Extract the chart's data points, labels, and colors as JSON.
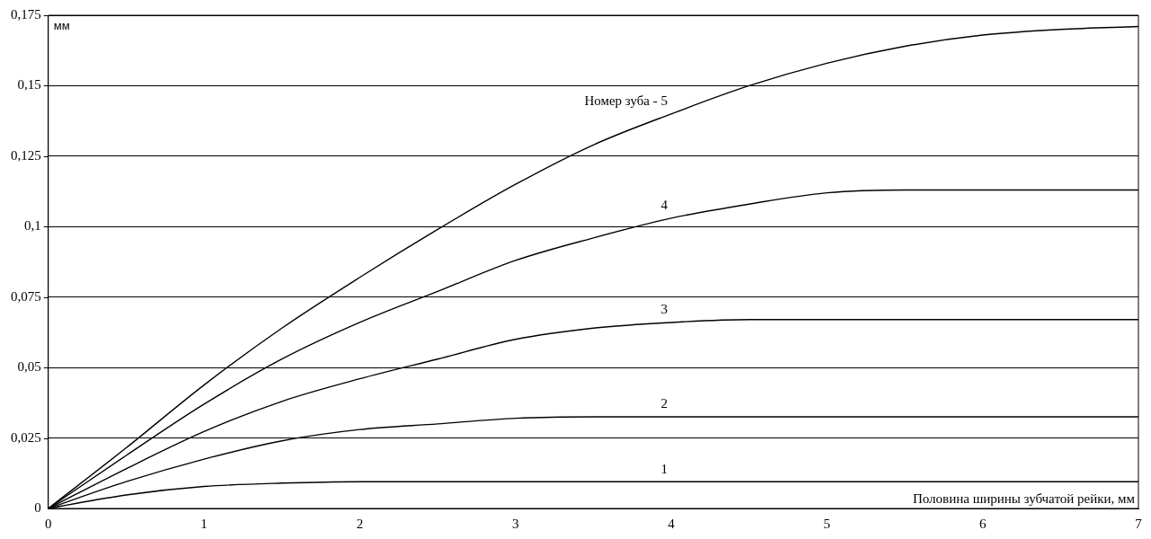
{
  "chart_data": {
    "type": "line",
    "xlabel": "Половина ширины зубчатой рейки, мм",
    "ylabel": "мм",
    "x": [
      0,
      0.5,
      1,
      1.5,
      2,
      2.5,
      3,
      3.5,
      4,
      4.5,
      5,
      5.5,
      6,
      6.5,
      7
    ],
    "series": [
      {
        "name": "Номер зуба - 5",
        "color": "#000000",
        "values": [
          0,
          0.0215,
          0.0438,
          0.064,
          0.082,
          0.099,
          0.115,
          0.129,
          0.14,
          0.15,
          0.158,
          0.164,
          0.168,
          0.17,
          0.171
        ]
      },
      {
        "name": "4",
        "color": "#000000",
        "values": [
          0,
          0.0188,
          0.037,
          0.053,
          0.066,
          0.077,
          0.088,
          0.096,
          0.103,
          0.108,
          0.112,
          0.113,
          0.113,
          0.113,
          0.113
        ]
      },
      {
        "name": "3",
        "color": "#000000",
        "values": [
          0,
          0.0141,
          0.0273,
          0.038,
          0.046,
          0.053,
          0.06,
          0.064,
          0.066,
          0.067,
          0.067,
          0.067,
          0.067,
          0.067,
          0.067
        ]
      },
      {
        "name": "2",
        "color": "#000000",
        "values": [
          0,
          0.0095,
          0.0175,
          0.024,
          0.028,
          0.03,
          0.032,
          0.0325,
          0.0325,
          0.0325,
          0.0325,
          0.0325,
          0.0325,
          0.0325,
          0.0325
        ]
      },
      {
        "name": "1",
        "color": "#000000",
        "values": [
          0,
          0.0048,
          0.0078,
          0.009,
          0.0095,
          0.0095,
          0.0095,
          0.0095,
          0.0095,
          0.0095,
          0.0095,
          0.0095,
          0.0095,
          0.0095,
          0.0095
        ]
      }
    ],
    "xlim": [
      0,
      7
    ],
    "xticks": [
      0,
      1,
      2,
      3,
      4,
      5,
      6,
      7
    ],
    "ylim": [
      0,
      0.175
    ],
    "yticks": [
      0,
      {
        "value": 0.025,
        "label": "0,025"
      },
      {
        "value": 0.05,
        "label": "0,05"
      },
      {
        "value": 0.075,
        "label": "0,075"
      },
      {
        "value": 0.1,
        "label": "0,1"
      },
      {
        "value": 0.125,
        "label": "0,125"
      },
      {
        "value": 0.15,
        "label": "0,15"
      },
      {
        "value": 0.175,
        "label": "0,175"
      }
    ],
    "grid": "y",
    "legend": false,
    "marker": "none",
    "line_style": "solid"
  }
}
